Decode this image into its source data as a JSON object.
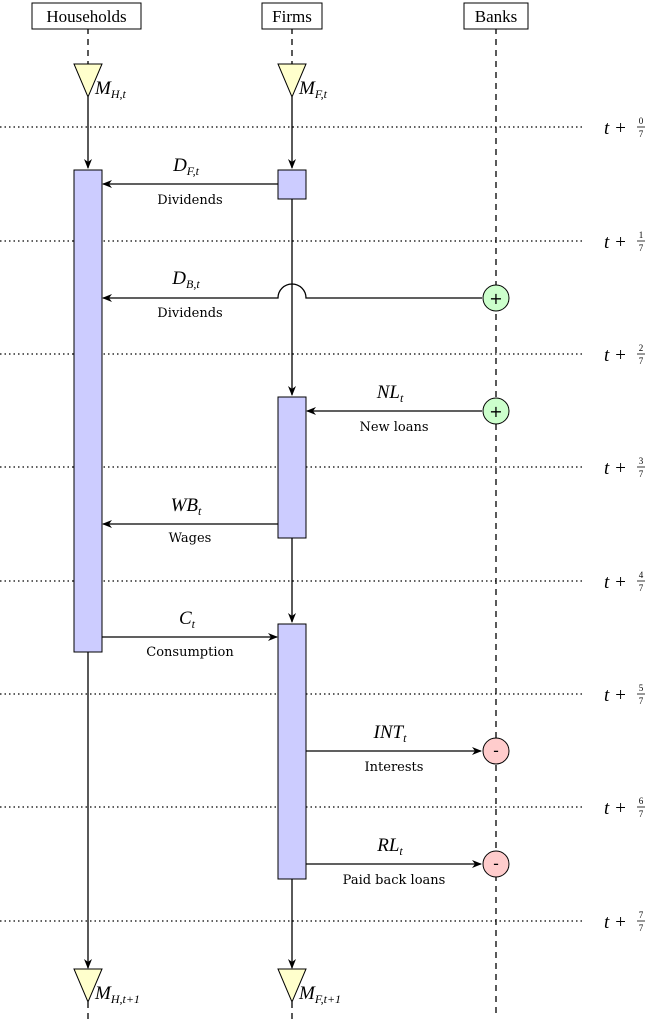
{
  "actors": {
    "households": "Households",
    "firms": "Firms",
    "banks": "Banks"
  },
  "money": {
    "mh_t": {
      "base": "M",
      "sub": "H,t"
    },
    "mf_t": {
      "base": "M",
      "sub": "F,t"
    },
    "mh_t1": {
      "base": "M",
      "sub": "H,t+1"
    },
    "mf_t1": {
      "base": "M",
      "sub": "F,t+1"
    }
  },
  "flows": {
    "dividends_firms": {
      "base": "D",
      "sub": "F,t",
      "label": "Dividends"
    },
    "dividends_banks": {
      "base": "D",
      "sub": "B,t",
      "label": "Dividends"
    },
    "new_loans": {
      "base": "NL",
      "sub": "t",
      "label": "New loans"
    },
    "wages": {
      "base": "WB",
      "sub": "t",
      "label": "Wages"
    },
    "consumption": {
      "base": "C",
      "sub": "t",
      "label": "Consumption"
    },
    "interests": {
      "base": "INT",
      "sub": "t",
      "label": "Interests"
    },
    "paid_back": {
      "base": "RL",
      "sub": "t",
      "label": "Paid back loans"
    }
  },
  "signs": {
    "plus": "+",
    "minus": "-"
  },
  "time": {
    "prefix": "t +",
    "denominator": "7",
    "numerators": [
      "0",
      "1",
      "2",
      "3",
      "4",
      "5",
      "6",
      "7"
    ]
  },
  "colors": {
    "activation": "#ccccff",
    "money_triangle": "#ffffcc",
    "plus_circle": "#ccffcc",
    "minus_circle": "#ffcccc"
  }
}
